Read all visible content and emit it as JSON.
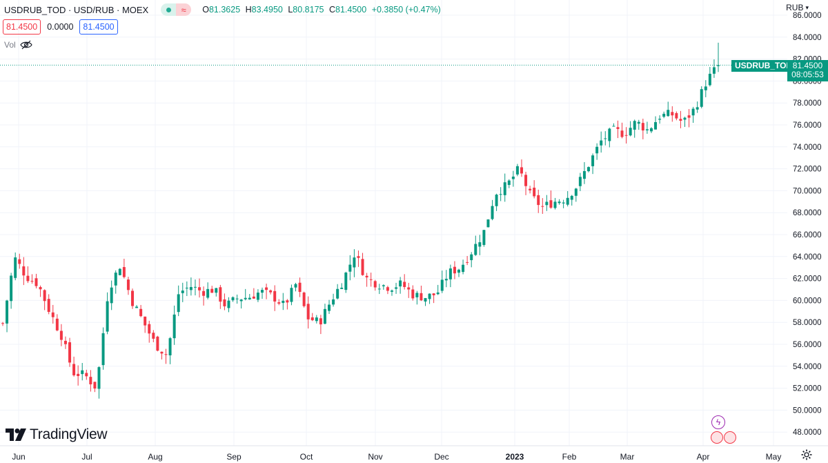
{
  "header": {
    "symbol": "USDRUB_TOD · USD/RUB · MOEX",
    "ohlc": [
      {
        "key": "O",
        "value": "81.3625"
      },
      {
        "key": "H",
        "value": "83.4950"
      },
      {
        "key": "L",
        "value": "80.8175"
      },
      {
        "key": "C",
        "value": "81.4500"
      },
      {
        "key": "",
        "value": "+0.3850 (+0.47%)"
      }
    ],
    "approx_symbol": "≈",
    "bid": "81.4500",
    "spread": "0.0000",
    "ask": "81.4500",
    "vol_label": "Vol",
    "currency": "RUB"
  },
  "last_price": {
    "symbol_tag": "USDRUB_TOD",
    "price": "81.4500",
    "countdown": "08:05:53",
    "value": 81.45
  },
  "brand": {
    "name": "TradingView"
  },
  "colors": {
    "up": "#089981",
    "down": "#f23645",
    "grid": "#f0f3fa",
    "text": "#131722"
  },
  "chart_data": {
    "type": "candlestick",
    "title": "USDRUB_TOD · USD/RUB · MOEX",
    "y_axis_ticks": [
      "48.0000",
      "50.0000",
      "52.0000",
      "54.0000",
      "56.0000",
      "58.0000",
      "60.0000",
      "62.0000",
      "64.0000",
      "66.0000",
      "68.0000",
      "70.0000",
      "72.0000",
      "74.0000",
      "76.0000",
      "78.0000",
      "80.0000",
      "82.0000",
      "84.0000",
      "86.0000"
    ],
    "x_axis_ticks": [
      "Jun",
      "Jul",
      "Aug",
      "Sep",
      "Oct",
      "Nov",
      "Dec",
      "2023",
      "Feb",
      "Mar",
      "Apr",
      "May"
    ],
    "ylim": [
      47,
      87
    ],
    "series_close_approx": [
      57.9,
      63.9,
      62.2,
      61.5,
      59.0,
      56.8,
      53.4,
      53.2,
      52.0,
      61.0,
      63.2,
      60.0,
      58.0,
      56.0,
      55.0,
      60.7,
      61.3,
      60.8,
      61.0,
      59.5,
      60.2,
      60.3,
      60.8,
      60.4,
      59.5,
      61.5,
      58.4,
      58.0,
      60.0,
      61.8,
      64.3,
      62.0,
      61.5,
      61.2,
      61.5,
      60.5,
      60.3,
      60.6,
      62.5,
      63.0,
      64.5,
      66.2,
      69.8,
      70.5,
      72.0,
      69.5,
      68.5,
      69.0,
      69.3,
      70.5,
      72.5,
      74.5,
      75.5,
      75.2,
      76.3,
      75.5,
      76.8,
      77.0,
      76.2,
      77.5,
      80.0,
      81.45
    ]
  }
}
